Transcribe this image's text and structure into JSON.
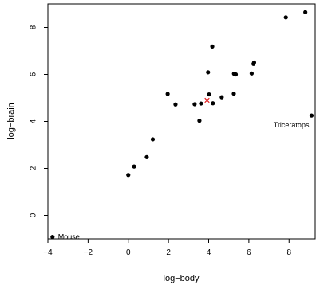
{
  "chart_data": {
    "type": "scatter",
    "xlabel": "log−body",
    "ylabel": "log−brain",
    "xlim": [
      -4,
      9.3
    ],
    "ylim": [
      -1,
      9
    ],
    "x_ticks": [
      -4,
      -2,
      0,
      2,
      4,
      6,
      8
    ],
    "x_tick_labels": [
      "−4",
      "−2",
      "0",
      "2",
      "4",
      "6",
      "8"
    ],
    "y_ticks": [
      0,
      2,
      4,
      6,
      8
    ],
    "y_tick_labels": [
      "0",
      "2",
      "4",
      "6",
      "8"
    ],
    "grid": false,
    "series": [
      {
        "marker": "filled-circle",
        "color": "#000000",
        "points": [
          [
            -3.77,
            -0.92
          ],
          [
            0.0,
            1.72
          ],
          [
            0.29,
            2.08
          ],
          [
            0.92,
            2.48
          ],
          [
            1.22,
            3.24
          ],
          [
            1.96,
            5.17
          ],
          [
            2.35,
            4.72
          ],
          [
            3.3,
            4.73
          ],
          [
            3.54,
            4.03
          ],
          [
            3.62,
            4.76
          ],
          [
            3.97,
            6.09
          ],
          [
            4.02,
            5.15
          ],
          [
            4.18,
            7.19
          ],
          [
            4.21,
            4.77
          ],
          [
            4.65,
            5.03
          ],
          [
            5.25,
            5.18
          ],
          [
            5.26,
            6.03
          ],
          [
            5.35,
            6.0
          ],
          [
            6.14,
            6.04
          ],
          [
            6.23,
            6.45
          ],
          [
            6.26,
            6.51
          ],
          [
            7.84,
            8.43
          ],
          [
            8.81,
            8.65
          ],
          [
            9.12,
            4.25
          ]
        ]
      },
      {
        "marker": "cross",
        "color": "#e31a1c",
        "points": [
          [
            3.92,
            4.9
          ]
        ]
      }
    ],
    "annotations": [
      {
        "text": "Mouse",
        "x": -3.77,
        "y": -0.92,
        "anchor": "start"
      },
      {
        "text": "Triceratops",
        "x": 9.12,
        "y": 4.25,
        "anchor": "end"
      }
    ]
  }
}
